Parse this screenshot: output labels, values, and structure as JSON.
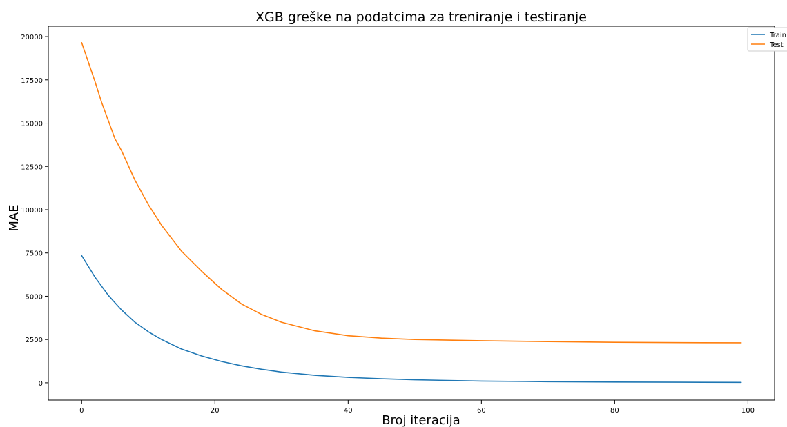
{
  "chart_data": {
    "type": "line",
    "title": "XGB greške na podatcima za treniranje i testiranje",
    "xlabel": "Broj iteracija",
    "ylabel": "MAE",
    "xlim": [
      -5,
      104
    ],
    "ylim": [
      -1000,
      20600
    ],
    "xticks": [
      0,
      20,
      40,
      60,
      80,
      100
    ],
    "yticks": [
      0,
      2500,
      5000,
      7500,
      10000,
      12500,
      15000,
      17500,
      20000
    ],
    "grid": false,
    "legend_position": "top-right",
    "series": [
      {
        "name": "Train",
        "color": "#1f77b4",
        "x": [
          0,
          2,
          4,
          6,
          8,
          10,
          12,
          15,
          18,
          21,
          24,
          27,
          30,
          35,
          40,
          45,
          50,
          60,
          70,
          80,
          90,
          99
        ],
        "y": [
          7350,
          6100,
          5050,
          4200,
          3500,
          2950,
          2500,
          1950,
          1550,
          1230,
          980,
          780,
          620,
          430,
          310,
          230,
          170,
          100,
          65,
          45,
          32,
          25
        ]
      },
      {
        "name": "Test",
        "color": "#ff7f0e",
        "x": [
          0,
          2,
          3,
          5,
          6,
          8,
          10,
          12,
          15,
          18,
          21,
          24,
          27,
          30,
          35,
          40,
          45,
          50,
          60,
          70,
          80,
          90,
          99
        ],
        "y": [
          19650,
          17400,
          16200,
          14100,
          13400,
          11700,
          10300,
          9100,
          7600,
          6450,
          5400,
          4550,
          3950,
          3500,
          3000,
          2720,
          2580,
          2500,
          2430,
          2380,
          2340,
          2320,
          2310
        ]
      }
    ]
  }
}
